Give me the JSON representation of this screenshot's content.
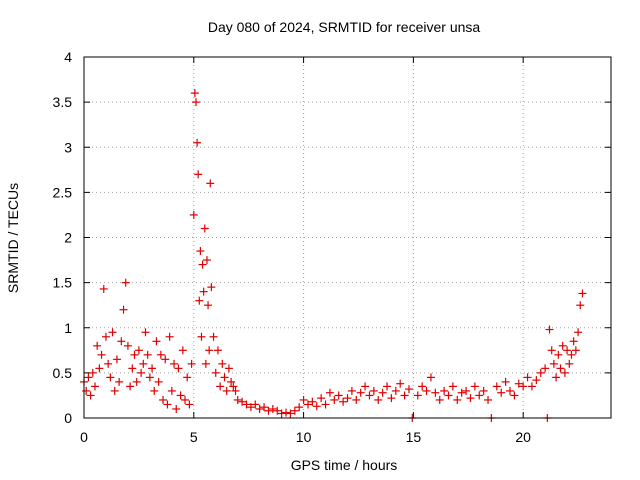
{
  "chart_data": {
    "type": "scatter",
    "title": "Day 080 of 2024, SRMTID for receiver unsa",
    "xlabel": "GPS time / hours",
    "ylabel": "SRMTID / TECUs",
    "xlim": [
      0,
      24
    ],
    "ylim": [
      0,
      4
    ],
    "xticks": [
      0,
      5,
      10,
      15,
      20
    ],
    "yticks": [
      0,
      0.5,
      1,
      1.5,
      2,
      2.5,
      3,
      3.5,
      4
    ],
    "xtick_labels": [
      "0",
      "5",
      "10",
      "15",
      "20"
    ],
    "ytick_labels": [
      "0",
      "0.5",
      "1",
      "1.5",
      "2",
      "2.5",
      "3",
      "3.5",
      "4"
    ],
    "grid": true,
    "marker": "+",
    "series": [
      {
        "name": "SRMTID",
        "color": "#e00000",
        "x": [
          0.0,
          0.1,
          0.2,
          0.3,
          0.4,
          0.5,
          0.6,
          0.7,
          0.8,
          0.9,
          1.0,
          1.1,
          1.2,
          1.3,
          1.4,
          1.5,
          1.6,
          1.7,
          1.8,
          1.9,
          2.0,
          2.1,
          2.2,
          2.3,
          2.4,
          2.5,
          2.6,
          2.7,
          2.8,
          2.9,
          3.0,
          3.1,
          3.2,
          3.3,
          3.4,
          3.5,
          3.6,
          3.7,
          3.8,
          3.9,
          4.0,
          4.1,
          4.2,
          4.3,
          4.4,
          4.5,
          4.6,
          4.7,
          4.8,
          4.9,
          5.0,
          5.05,
          5.1,
          5.15,
          5.2,
          5.25,
          5.3,
          5.35,
          5.4,
          5.45,
          5.5,
          5.55,
          5.6,
          5.65,
          5.7,
          5.75,
          5.8,
          5.9,
          6.0,
          6.1,
          6.2,
          6.3,
          6.4,
          6.5,
          6.6,
          6.7,
          6.8,
          6.9,
          7.0,
          7.2,
          7.4,
          7.6,
          7.8,
          8.0,
          8.2,
          8.4,
          8.6,
          8.8,
          9.0,
          9.2,
          9.4,
          9.6,
          9.8,
          10.0,
          10.2,
          10.4,
          10.6,
          10.8,
          11.0,
          11.2,
          11.4,
          11.6,
          11.8,
          12.0,
          12.2,
          12.4,
          12.6,
          12.8,
          13.0,
          13.2,
          13.4,
          13.6,
          13.8,
          14.0,
          14.2,
          14.4,
          14.6,
          14.8,
          14.95,
          15.2,
          15.4,
          15.6,
          15.8,
          16.0,
          16.2,
          16.4,
          16.6,
          16.8,
          17.0,
          17.2,
          17.4,
          17.6,
          17.8,
          18.0,
          18.2,
          18.4,
          18.55,
          18.8,
          19.0,
          19.2,
          19.4,
          19.6,
          19.8,
          20.0,
          20.2,
          20.4,
          20.6,
          20.8,
          21.0,
          21.1,
          21.2,
          21.3,
          21.4,
          21.5,
          21.6,
          21.7,
          21.8,
          21.9,
          22.0,
          22.1,
          22.2,
          22.3,
          22.4,
          22.5,
          22.6,
          22.7
        ],
        "y": [
          0.4,
          0.3,
          0.45,
          0.25,
          0.5,
          0.35,
          0.8,
          0.55,
          0.7,
          1.43,
          0.9,
          0.6,
          0.45,
          0.95,
          0.3,
          0.65,
          0.4,
          0.85,
          1.2,
          1.5,
          0.8,
          0.35,
          0.55,
          0.7,
          0.4,
          0.75,
          0.5,
          0.6,
          0.95,
          0.7,
          0.45,
          0.55,
          0.3,
          0.85,
          0.4,
          0.7,
          0.2,
          0.65,
          0.15,
          0.9,
          0.3,
          0.6,
          0.1,
          0.55,
          0.25,
          0.75,
          0.2,
          0.45,
          0.15,
          0.6,
          2.25,
          3.6,
          3.5,
          3.05,
          2.7,
          1.3,
          1.85,
          0.9,
          1.7,
          1.4,
          2.1,
          0.6,
          1.75,
          1.25,
          0.75,
          2.6,
          1.45,
          0.9,
          0.5,
          0.75,
          0.35,
          0.6,
          0.45,
          0.3,
          0.55,
          0.4,
          0.35,
          0.3,
          0.2,
          0.18,
          0.15,
          0.12,
          0.15,
          0.1,
          0.12,
          0.08,
          0.1,
          0.08,
          0.05,
          0.06,
          0.05,
          0.08,
          0.12,
          0.2,
          0.15,
          0.18,
          0.13,
          0.22,
          0.15,
          0.28,
          0.2,
          0.25,
          0.18,
          0.22,
          0.3,
          0.2,
          0.28,
          0.35,
          0.25,
          0.3,
          0.2,
          0.28,
          0.35,
          0.22,
          0.3,
          0.38,
          0.25,
          0.32,
          0.0,
          0.25,
          0.35,
          0.3,
          0.45,
          0.28,
          0.2,
          0.3,
          0.25,
          0.35,
          0.2,
          0.28,
          0.3,
          0.22,
          0.35,
          0.25,
          0.3,
          0.2,
          0.0,
          0.35,
          0.28,
          0.4,
          0.3,
          0.25,
          0.38,
          0.35,
          0.45,
          0.35,
          0.42,
          0.5,
          0.55,
          0.0,
          0.98,
          0.75,
          0.6,
          0.45,
          0.7,
          0.55,
          0.8,
          0.5,
          0.75,
          0.6,
          0.7,
          0.85,
          0.75,
          0.95,
          1.25,
          1.38
        ]
      }
    ]
  }
}
